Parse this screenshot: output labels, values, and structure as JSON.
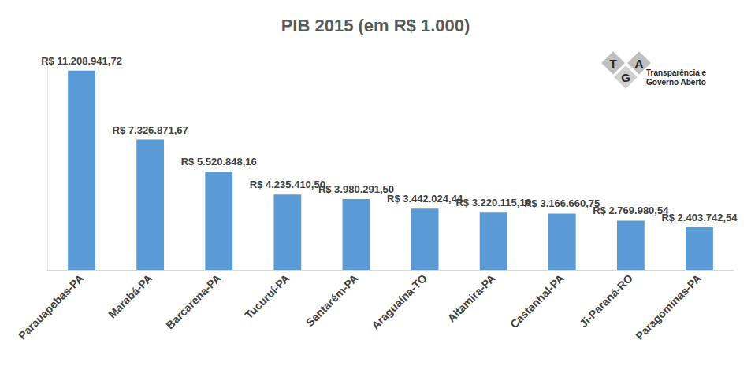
{
  "chart_data": {
    "type": "bar",
    "title": "PIB 2015 (em R$ 1.000)",
    "categories": [
      "Parauapebas-PA",
      "Marabá-PA",
      "Barcarena-PA",
      "Tucuruí-PA",
      "Santarém-PA",
      "Araguaína-TO",
      "Altamira-PA",
      "Castanhal-PA",
      "Ji-Paraná-RO",
      "Paragominas-PA"
    ],
    "values": [
      11208941.72,
      7326871.67,
      5520848.16,
      4235410.5,
      3980291.5,
      3442024.44,
      3220115.16,
      3166660.75,
      2769980.54,
      2403742.54
    ],
    "value_labels": [
      "R$ 11.208.941,72",
      "R$ 7.326.871,67",
      "R$ 5.520.848,16",
      "R$ 4.235.410,50",
      "R$ 3.980.291,50",
      "R$ 3.442.024,44",
      "R$ 3.220.115,16",
      "R$ 3.166.660,75",
      "R$ 2.769.980,54",
      "R$ 2.403.742,54"
    ],
    "color": "#5b9bd5",
    "ylim": [
      0,
      12000000
    ],
    "grid": false,
    "data_labels": true,
    "tick_labels": "x",
    "logo": {
      "letters": [
        "T",
        "G",
        "A"
      ],
      "lines": [
        "Transparência e",
        "Governo Aberto"
      ]
    }
  }
}
